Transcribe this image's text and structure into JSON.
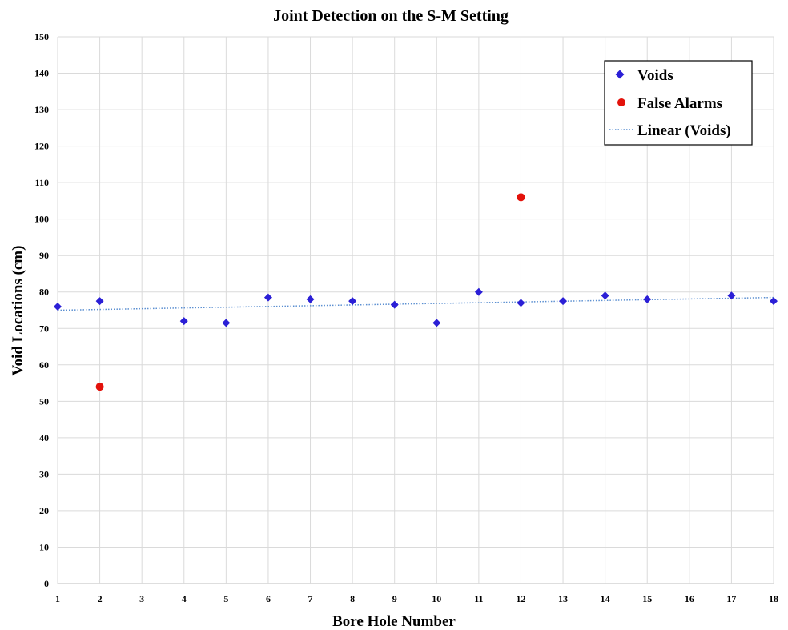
{
  "chart_data": {
    "type": "scatter",
    "title": "Joint Detection on the S-M Setting",
    "xlabel": "Bore Hole Number",
    "ylabel": "Void Locations (cm)",
    "x_ticks": [
      "1",
      "2",
      "3",
      "4",
      "5",
      "6",
      "7",
      "8",
      "9",
      "10",
      "11",
      "12",
      "13",
      "14",
      "15",
      "16",
      "17",
      "18"
    ],
    "xlim": [
      1,
      18
    ],
    "ylim": [
      0,
      150
    ],
    "y_ticks": [
      0,
      10,
      20,
      30,
      40,
      50,
      60,
      70,
      80,
      90,
      100,
      110,
      120,
      130,
      140,
      150
    ],
    "grid": true,
    "legend_position": "top-right",
    "series": [
      {
        "name": "Voids",
        "marker": "diamond",
        "color": "#2b1fd6",
        "points": [
          {
            "x": 1,
            "y": 76
          },
          {
            "x": 2,
            "y": 77.5
          },
          {
            "x": 4,
            "y": 72
          },
          {
            "x": 5,
            "y": 71.5
          },
          {
            "x": 6,
            "y": 78.5
          },
          {
            "x": 7,
            "y": 78
          },
          {
            "x": 8,
            "y": 77.5
          },
          {
            "x": 9,
            "y": 76.5
          },
          {
            "x": 10,
            "y": 71.5
          },
          {
            "x": 11,
            "y": 80
          },
          {
            "x": 12,
            "y": 77
          },
          {
            "x": 13,
            "y": 77.5
          },
          {
            "x": 14,
            "y": 79
          },
          {
            "x": 15,
            "y": 78
          },
          {
            "x": 17,
            "y": 79
          },
          {
            "x": 18,
            "y": 77.5
          }
        ]
      },
      {
        "name": "False Alarms",
        "marker": "circle",
        "color": "#e3120b",
        "points": [
          {
            "x": 2,
            "y": 54
          },
          {
            "x": 12,
            "y": 106
          }
        ]
      },
      {
        "name": "Linear (Voids)",
        "marker": "dotted-line",
        "color": "#5b8fd1",
        "line": {
          "x1": 1,
          "y1": 75,
          "x2": 18,
          "y2": 78.5
        }
      }
    ]
  }
}
